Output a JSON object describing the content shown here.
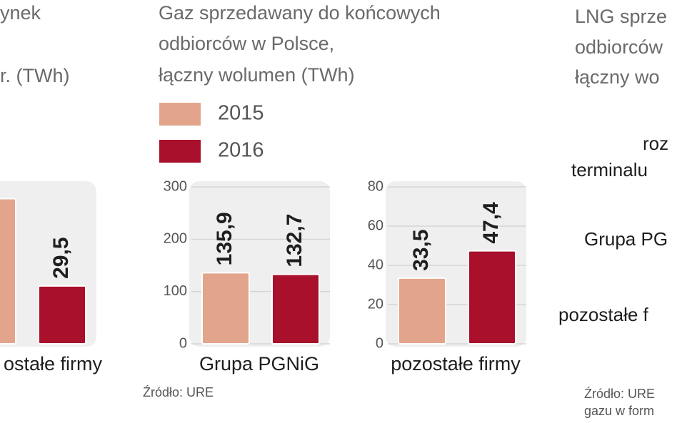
{
  "chart_data": [
    {
      "type": "bar",
      "title_lines": [
        "ynek",
        "r. (TWh)"
      ],
      "categories": [
        "ostałe firmy"
      ],
      "series": [
        {
          "color": "#e2a58b",
          "values": [
            74
          ]
        },
        {
          "color": "#a8102c",
          "values": [
            29.5
          ],
          "value_labels": [
            "29,5"
          ]
        }
      ],
      "ylim": [
        0,
        80
      ],
      "grid": false
    },
    {
      "type": "bar",
      "title_lines": [
        "Gaz sprzedawany do końcowych",
        "odbiorców w Polsce,",
        "łączny wolumen (TWh)"
      ],
      "categories": [
        "Grupa PGNiG"
      ],
      "series": [
        {
          "name": "2015",
          "color": "#e2a58b",
          "values": [
            135.9
          ],
          "value_labels": [
            "135,9"
          ]
        },
        {
          "name": "2016",
          "color": "#a8102c",
          "values": [
            132.7
          ],
          "value_labels": [
            "132,7"
          ]
        }
      ],
      "ylim": [
        0,
        300
      ],
      "yticks": [
        0,
        100,
        200,
        300
      ],
      "grid": true,
      "source_lines": [
        "Źródło: URE"
      ]
    },
    {
      "type": "bar",
      "categories": [
        "pozostałe firmy"
      ],
      "series": [
        {
          "color": "#e2a58b",
          "values": [
            33.5
          ],
          "value_labels": [
            "33,5"
          ]
        },
        {
          "color": "#a8102c",
          "values": [
            47.4
          ],
          "value_labels": [
            "47,4"
          ]
        }
      ],
      "ylim": [
        0,
        80
      ],
      "yticks": [
        0,
        20,
        40,
        60,
        80
      ],
      "grid": true
    },
    {
      "type": "hbar",
      "title_lines": [
        "LNG sprze",
        "odbiorców",
        "łączny wo"
      ],
      "categories": [
        [
          "roz",
          "terminalu"
        ],
        [
          "Grupa PG"
        ],
        [
          "pozostałe f"
        ]
      ],
      "source_lines": [
        "Źródło: URE",
        "gazu w form"
      ]
    }
  ]
}
